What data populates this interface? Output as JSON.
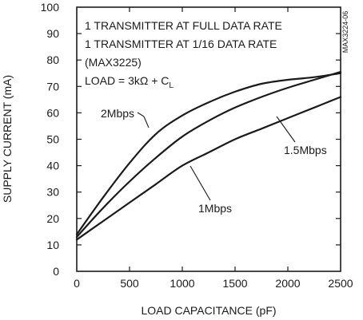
{
  "chart_data": {
    "type": "line",
    "xlabel": "LOAD CAPACITANCE (pF)",
    "ylabel": "SUPPLY CURRENT (mA)",
    "xlim": [
      0,
      2500
    ],
    "ylim": [
      0,
      100
    ],
    "x_ticks": [
      "0",
      "500",
      "1000",
      "1500",
      "2000",
      "2500"
    ],
    "y_ticks": [
      "0",
      "10",
      "20",
      "30",
      "40",
      "50",
      "60",
      "70",
      "80",
      "90",
      "100"
    ],
    "grid": false,
    "legend_text": [
      "1 TRANSMITTER AT FULL DATA RATE",
      "1 TRANSMITTER AT 1/16 DATA RATE",
      "(MAX3225)",
      "LOAD = 3kΩ + C",
      "L"
    ],
    "side_id": "MAX3224-06",
    "series": [
      {
        "name": "2Mbps",
        "x": [
          0,
          250,
          500,
          750,
          1000,
          1250,
          1500,
          1750,
          2000,
          2250,
          2500
        ],
        "y": [
          14,
          28,
          41,
          52,
          59,
          64,
          68,
          71,
          72.5,
          73.5,
          75
        ]
      },
      {
        "name": "1.5Mbps",
        "x": [
          0,
          250,
          500,
          750,
          1000,
          1250,
          1500,
          1750,
          2000,
          2250,
          2500
        ],
        "y": [
          13,
          24,
          34,
          43,
          51,
          57,
          62,
          66,
          69.5,
          72.5,
          75.5
        ]
      },
      {
        "name": "1Mbps",
        "x": [
          0,
          250,
          500,
          750,
          1000,
          1250,
          1500,
          1750,
          2000,
          2250,
          2500
        ],
        "y": [
          12,
          19,
          26,
          33,
          40,
          45,
          50,
          54,
          58,
          62,
          66
        ]
      }
    ]
  }
}
